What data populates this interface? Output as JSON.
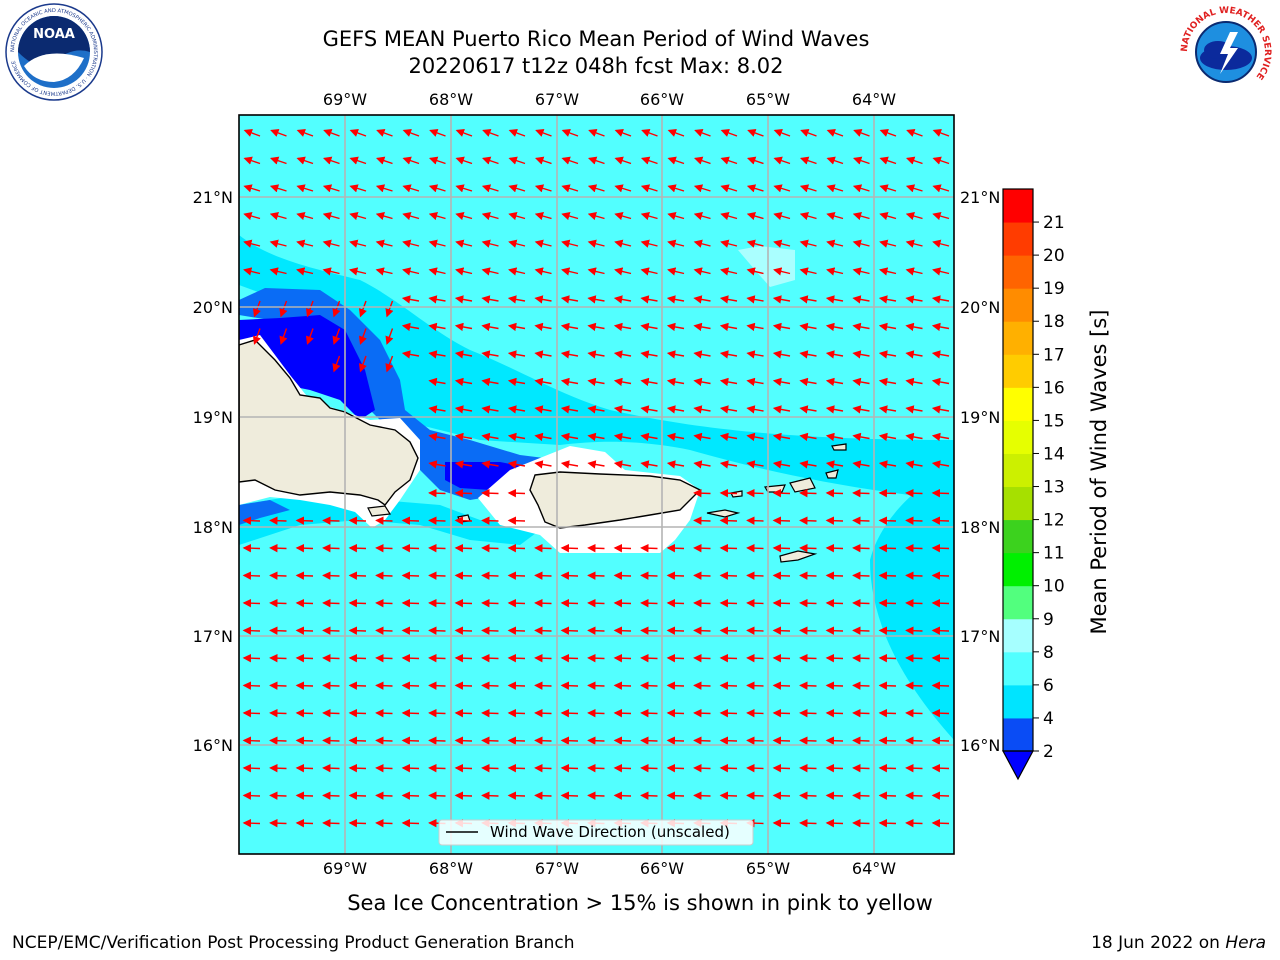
{
  "header": {
    "title_line1": "GEFS MEAN Puerto Rico Mean Period of Wind Waves",
    "title_line2": "20220617 t12z 048h fcst   Max: 8.02"
  },
  "logos": {
    "left": {
      "icon": "noaa-logo",
      "ring_text": "NATIONAL OCEANIC AND ATMOSPHERIC ADMINISTRATION · U.S. DEPARTMENT OF COMMERCE",
      "center_text": "NOAA"
    },
    "right": {
      "icon": "nws-logo",
      "ring_text": "NATIONAL WEATHER SERVICE"
    }
  },
  "map": {
    "lon_labels": [
      "69°W",
      "68°W",
      "67°W",
      "66°W",
      "65°W",
      "64°W"
    ],
    "lat_labels": [
      "21°N",
      "20°N",
      "19°N",
      "18°N",
      "17°N",
      "16°N"
    ],
    "arrow_color": "#ff0000",
    "land_color": "#efecdc",
    "legend_label": "Wind Wave Direction (unscaled)"
  },
  "colorbar": {
    "label": "Mean Period of Wind Waves [s]",
    "ticks": [
      "2",
      "4",
      "6",
      "8",
      "9",
      "10",
      "11",
      "12",
      "13",
      "14",
      "15",
      "16",
      "17",
      "18",
      "19",
      "20",
      "21"
    ],
    "colors": [
      "#0a4cf5",
      "#00e4ff",
      "#52ffff",
      "#a6ffff",
      "#52ff7e",
      "#00f000",
      "#3cd21e",
      "#a6e000",
      "#ccf000",
      "#e6ff00",
      "#ffff00",
      "#ffcc00",
      "#ffb000",
      "#ff8c00",
      "#ff6400",
      "#ff3c00",
      "#ff0000"
    ],
    "under_color": "#0000ff"
  },
  "footer": {
    "sea_ice_note": "Sea Ice Concentration > 15% is shown in pink to yellow",
    "credit_left": "NCEP/EMC/Verification Post Processing Product Generation Branch",
    "credit_date": "18 Jun 2022 on",
    "credit_machine": "Hera"
  }
}
